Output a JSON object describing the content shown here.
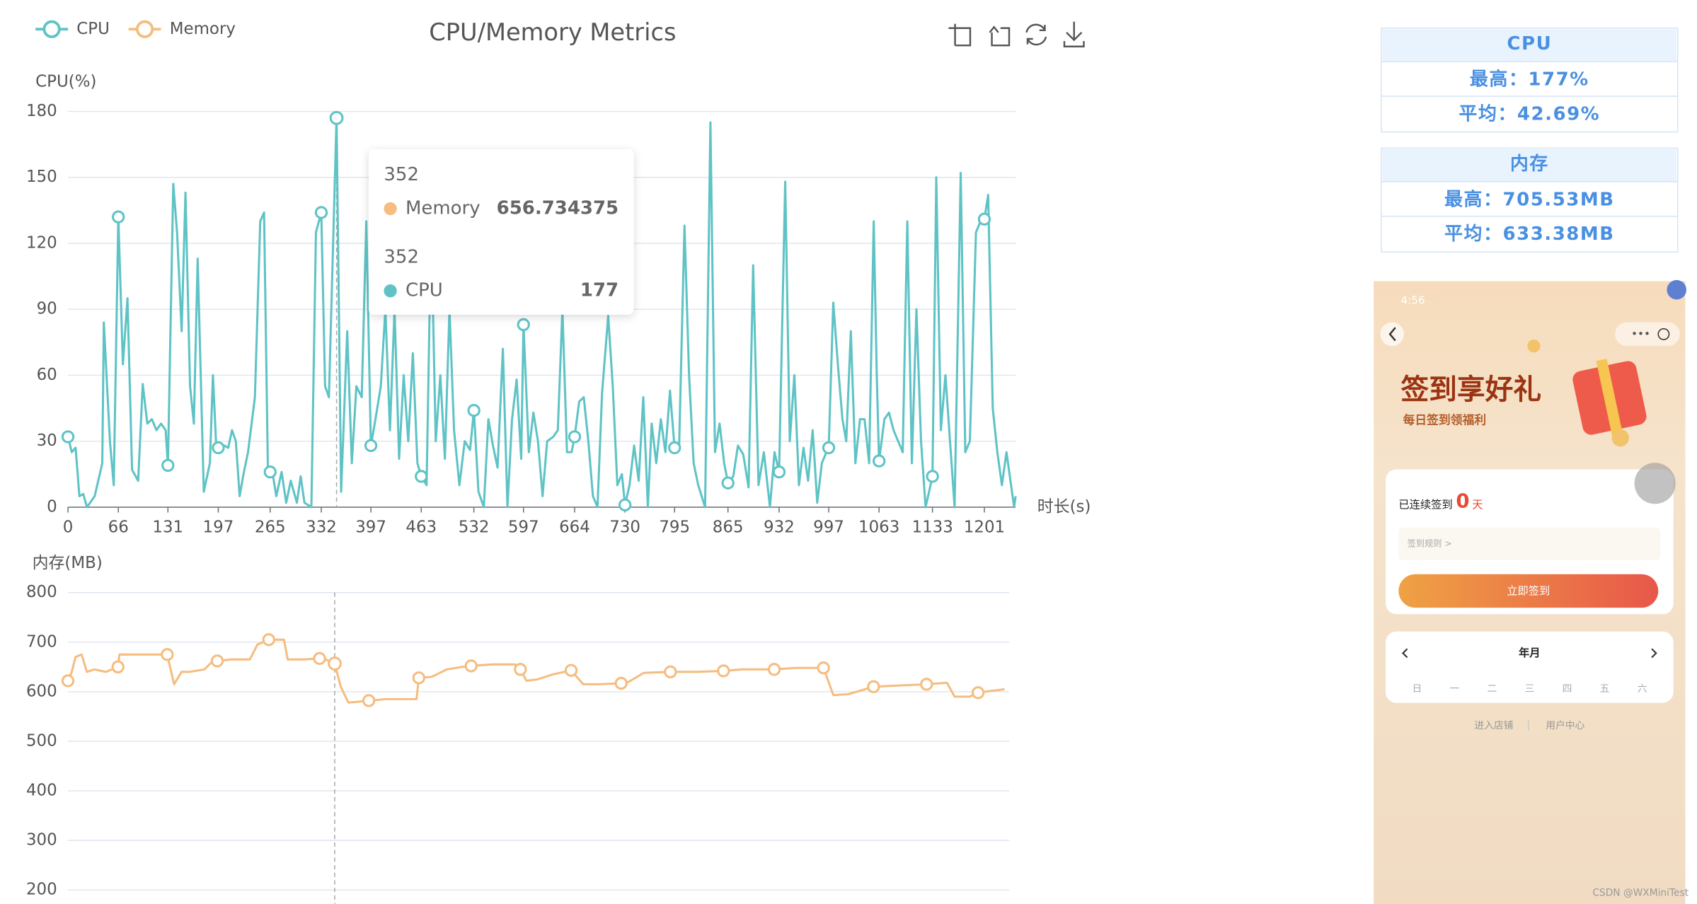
{
  "header": {
    "title": "CPU/Memory Metrics"
  },
  "tooltip": {
    "x": 352
  },
  "chart_data": [
    {
      "type": "line",
      "y_label": "CPU(%)",
      "x_label": "时长(s)",
      "xlim": [
        0,
        1242
      ],
      "xticks": [
        0,
        66,
        131,
        197,
        265,
        332,
        397,
        463,
        532,
        597,
        664,
        730,
        795,
        865,
        932,
        997,
        1063,
        1133,
        1201
      ],
      "ylim": [
        0,
        180
      ],
      "yticks": [
        0,
        30,
        60,
        90,
        120,
        150,
        180
      ],
      "grid": true,
      "x": [
        0,
        5,
        10,
        15,
        20,
        25,
        35,
        45,
        47,
        55,
        60,
        66,
        72,
        78,
        84,
        92,
        98,
        104,
        110,
        116,
        122,
        128,
        131,
        138,
        143,
        149,
        154,
        160,
        165,
        170,
        178,
        186,
        190,
        194,
        197,
        205,
        210,
        215,
        220,
        225,
        230,
        236,
        245,
        252,
        257,
        262,
        265,
        267,
        273,
        280,
        286,
        292,
        300,
        305,
        310,
        319,
        325,
        332,
        337,
        342,
        352,
        358,
        366,
        372,
        378,
        385,
        391,
        397,
        403,
        410,
        416,
        422,
        428,
        434,
        440,
        446,
        452,
        458,
        463,
        470,
        476,
        482,
        488,
        494,
        500,
        506,
        513,
        520,
        527,
        532,
        538,
        545,
        551,
        557,
        563,
        570,
        576,
        582,
        588,
        594,
        597,
        604,
        610,
        616,
        622,
        628,
        636,
        642,
        648,
        654,
        660,
        664,
        670,
        676,
        682,
        688,
        694,
        700,
        708,
        714,
        720,
        726,
        730,
        736,
        742,
        748,
        754,
        760,
        765,
        771,
        777,
        783,
        789,
        795,
        801,
        808,
        814,
        820,
        826,
        835,
        842,
        848,
        854,
        860,
        865,
        872,
        878,
        885,
        892,
        898,
        905,
        912,
        920,
        926,
        932,
        940,
        946,
        952,
        958,
        964,
        970,
        976,
        982,
        988,
        994,
        997,
        1003,
        1009,
        1015,
        1020,
        1026,
        1032,
        1038,
        1044,
        1050,
        1056,
        1060,
        1063,
        1070,
        1076,
        1082,
        1088,
        1094,
        1100,
        1106,
        1112,
        1118,
        1124,
        1133,
        1138,
        1144,
        1150,
        1156,
        1162,
        1170,
        1176,
        1182,
        1190,
        1196,
        1201,
        1206,
        1212,
        1218,
        1224,
        1230,
        1236,
        1240,
        1242
      ],
      "series": [
        {
          "name": "CPU",
          "color": "#5fc3c5",
          "values": [
            32,
            25,
            27,
            5,
            6,
            0,
            5,
            20,
            84,
            30,
            10,
            132,
            65,
            95,
            17,
            12,
            56,
            38,
            40,
            35,
            38,
            35,
            19,
            147,
            125,
            80,
            143,
            55,
            38,
            113,
            7,
            20,
            60,
            30,
            27,
            28,
            27,
            35,
            30,
            5,
            15,
            25,
            50,
            130,
            134,
            18,
            16,
            18,
            5,
            16,
            2,
            12,
            2,
            14,
            2,
            0,
            125,
            134,
            55,
            50,
            177,
            7,
            80,
            20,
            55,
            50,
            130,
            28,
            40,
            55,
            90,
            35,
            90,
            22,
            60,
            30,
            70,
            20,
            14,
            10,
            130,
            30,
            60,
            22,
            90,
            35,
            10,
            30,
            26,
            44,
            7,
            0,
            40,
            28,
            18,
            72,
            0,
            40,
            58,
            22,
            83,
            25,
            43,
            30,
            5,
            30,
            32,
            35,
            90,
            25,
            25,
            32,
            48,
            50,
            30,
            5,
            0,
            52,
            87,
            55,
            10,
            15,
            1,
            10,
            28,
            12,
            50,
            0,
            38,
            20,
            40,
            25,
            53,
            27,
            28,
            128,
            60,
            20,
            10,
            0,
            175,
            25,
            38,
            20,
            11,
            14,
            28,
            24,
            9,
            110,
            10,
            25,
            0,
            25,
            16,
            148,
            30,
            60,
            10,
            27,
            12,
            35,
            2,
            20,
            25,
            27,
            93,
            65,
            40,
            30,
            80,
            20,
            40,
            40,
            20,
            130,
            60,
            21,
            40,
            43,
            35,
            30,
            25,
            130,
            20,
            90,
            30,
            0,
            14,
            150,
            35,
            60,
            30,
            0,
            152,
            25,
            30,
            125,
            130,
            131,
            142,
            45,
            25,
            10,
            25,
            10,
            0,
            5
          ]
        }
      ]
    },
    {
      "type": "line",
      "y_label": "内存(MB)",
      "xlim": [
        0,
        1242
      ],
      "ylim": [
        200,
        800
      ],
      "yticks": [
        200,
        300,
        400,
        500,
        600,
        700,
        800
      ],
      "grid": true,
      "x": [
        0,
        5,
        10,
        18,
        25,
        35,
        50,
        66,
        68,
        90,
        110,
        131,
        140,
        150,
        160,
        180,
        190,
        197,
        215,
        240,
        250,
        265,
        285,
        290,
        310,
        332,
        340,
        352,
        360,
        370,
        385,
        397,
        420,
        460,
        463,
        480,
        500,
        520,
        532,
        560,
        590,
        597,
        605,
        620,
        640,
        664,
        680,
        700,
        730,
        740,
        760,
        795,
        830,
        865,
        890,
        932,
        960,
        997,
        1010,
        1030,
        1063,
        1090,
        1133,
        1160,
        1170,
        1190,
        1201,
        1220,
        1236
      ],
      "series": [
        {
          "name": "Memory",
          "color": "#f5bd80",
          "values": [
            622,
            640,
            670,
            675,
            640,
            645,
            640,
            650,
            675,
            675,
            675,
            675,
            615,
            640,
            640,
            645,
            660,
            662,
            665,
            665,
            695,
            705,
            705,
            665,
            665,
            667,
            665,
            656.734375,
            610,
            578,
            580,
            582,
            585,
            585,
            628,
            630,
            645,
            650,
            652,
            655,
            655,
            645,
            622,
            625,
            635,
            643,
            615,
            615,
            617,
            620,
            638,
            640,
            640,
            642,
            645,
            645,
            648,
            648,
            593,
            595,
            610,
            612,
            615,
            618,
            590,
            590,
            598,
            602,
            605
          ]
        }
      ]
    }
  ],
  "stats": [
    {
      "title": "CPU",
      "max": "最高：177%",
      "avg": "平均：42.69%"
    },
    {
      "title": "内存",
      "max": "最高：705.53MB",
      "avg": "平均：633.38MB"
    }
  ],
  "phone": {
    "time": "4:56",
    "title": "签到享好礼",
    "subtitle": "每日签到领福利",
    "streak_label": "已连续签到",
    "streak_count": 0,
    "streak_unit": "天",
    "rules": "签到规则 >",
    "button": "立即签到",
    "calendar_title": "年月",
    "weekdays": [
      "日",
      "一",
      "二",
      "三",
      "四",
      "五",
      "六"
    ],
    "links": [
      "进入店铺",
      "用户中心"
    ]
  },
  "watermark": "CSDN @WXMiniTest"
}
